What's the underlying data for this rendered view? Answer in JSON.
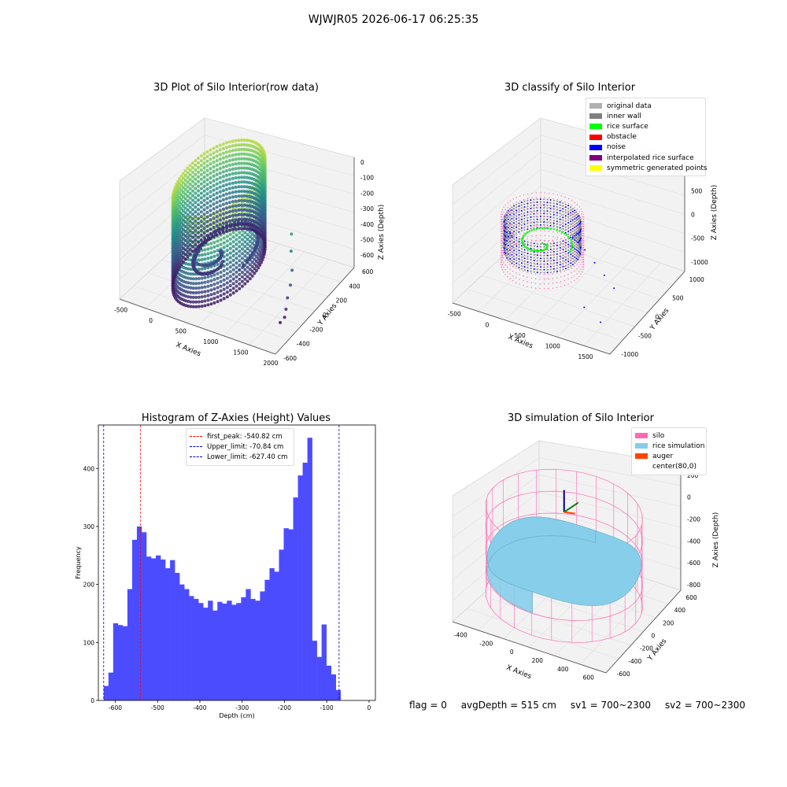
{
  "suptitle": "WJWJR05 2026-06-17 06:25:35",
  "status": {
    "flag": "flag = 0",
    "avg_depth": "avgDepth = 515 cm",
    "sv1": "sv1 = 700~2300",
    "sv2": "sv2 = 700~2300"
  },
  "colors": {
    "histogram_bar": "#4c4cff",
    "first_peak_line": "#ff0000",
    "limit_lines": "#0000cc",
    "silo": "#ff69b4",
    "rice_simulation": "#87ceeb",
    "auger": "#ff4500",
    "viridis_low": "#440154",
    "viridis_high": "#fde725"
  },
  "chart_data": [
    {
      "id": "raw",
      "type": "scatter",
      "title": "3D Plot of Silo Interior(row data)",
      "xlabel": "X Axies",
      "ylabel": "Y Axies",
      "zlabel": "Z Axies (Depth)",
      "x_ticks": [
        -500,
        0,
        500,
        1000,
        1500,
        2000
      ],
      "y_ticks": [
        -600,
        -400,
        -200,
        0,
        200,
        400,
        600
      ],
      "z_ticks": [
        0,
        -100,
        -200,
        -300,
        -400,
        -500,
        -600
      ],
      "xlim": [
        -600,
        2000
      ],
      "ylim": [
        -600,
        600
      ],
      "zlim": [
        -680,
        30
      ],
      "colormap": "viridis"
    },
    {
      "id": "classify",
      "type": "scatter",
      "title": "3D classify of Silo Interior",
      "xlabel": "X Axies",
      "ylabel": "Y Axies",
      "zlabel": "Z Axies (Depth)",
      "x_ticks": [
        -500,
        0,
        500,
        1000,
        1500
      ],
      "y_ticks": [
        -1000,
        -500,
        0,
        500,
        1000
      ],
      "z_ticks": [
        1000,
        500,
        0,
        -500,
        -1000
      ],
      "xlim": [
        -600,
        1800
      ],
      "ylim": [
        -1100,
        1100
      ],
      "zlim": [
        -1200,
        1200
      ],
      "legend_position": "upper right",
      "legend": [
        {
          "label": "original data",
          "color": "#b0b0b0"
        },
        {
          "label": "inner wall",
          "color": "#808080"
        },
        {
          "label": "rice surface",
          "color": "#00ff00"
        },
        {
          "label": "obstacle",
          "color": "#ff0000"
        },
        {
          "label": "noise",
          "color": "#0000ff"
        },
        {
          "label": "interpolated rice surface",
          "color": "#800080"
        },
        {
          "label": "symmetric generated points",
          "color": "#ffff00"
        }
      ]
    },
    {
      "id": "histogram",
      "type": "bar",
      "title": "Histogram of Z-Axies (Height) Values",
      "xlabel": "Depth (cm)",
      "ylabel": "Frequency",
      "xlim": [
        -640,
        15
      ],
      "ylim": [
        0,
        475
      ],
      "x_ticks": [
        -600,
        -500,
        -400,
        -300,
        -200,
        -100,
        0
      ],
      "y_ticks": [
        0,
        100,
        200,
        300,
        400
      ],
      "bin_start": -627.4,
      "bin_width": 11.2,
      "values": [
        25,
        48,
        133,
        130,
        128,
        192,
        277,
        300,
        290,
        248,
        245,
        250,
        243,
        228,
        242,
        220,
        200,
        192,
        180,
        175,
        168,
        160,
        172,
        155,
        170,
        167,
        172,
        165,
        168,
        178,
        192,
        175,
        172,
        188,
        208,
        228,
        222,
        260,
        297,
        295,
        350,
        388,
        410,
        453,
        103,
        75,
        131,
        60,
        45,
        18
      ],
      "legend_position": "upper center",
      "reference_lines": [
        {
          "label": "first_peak: -540.82 cm",
          "x": -540.82,
          "color": "#ff0000"
        },
        {
          "label": "Upper_limit: -70.84 cm",
          "x": -70.84,
          "color": "#0000cc"
        },
        {
          "label": "Lower_limit: -627.40 cm",
          "x": -627.4,
          "color": "#0000cc"
        }
      ]
    },
    {
      "id": "simulation",
      "type": "scatter",
      "title": "3D simulation of Silo Interior",
      "xlabel": "X Axies",
      "ylabel": "Y Axies",
      "zlabel": "Z Axies (Depth)",
      "x_ticks": [
        -400,
        -200,
        0,
        200,
        400,
        600
      ],
      "y_ticks": [
        -600,
        -400,
        -200,
        0,
        200,
        400,
        600
      ],
      "z_ticks": [
        200,
        0,
        -200,
        -400,
        -600,
        -800
      ],
      "xlim": [
        -500,
        700
      ],
      "ylim": [
        -650,
        650
      ],
      "zlim": [
        -850,
        300
      ],
      "legend_position": "upper right",
      "legend": [
        {
          "label": "silo",
          "color": "#ff69b4"
        },
        {
          "label": "rice simulation",
          "color": "#87ceeb"
        },
        {
          "label": "auger",
          "color": "#ff4500"
        },
        {
          "label": "center(80,0)",
          "color": ""
        }
      ]
    }
  ]
}
